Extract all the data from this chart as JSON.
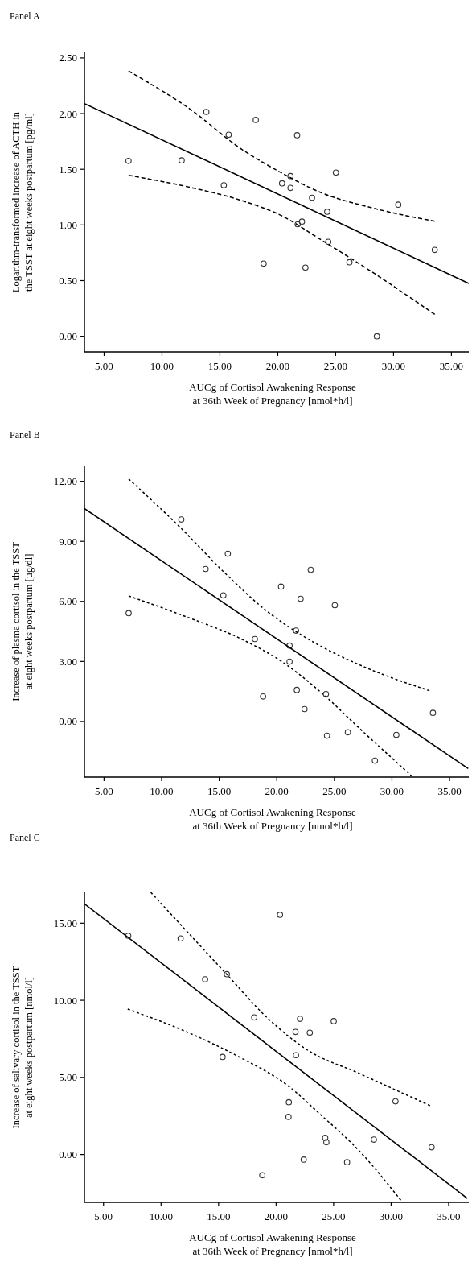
{
  "chart_data": [
    {
      "type": "scatter",
      "title": "Panel A",
      "xlabel": "AUCg of Cortisol Awakening Response\nat 36th Week of Pregnancy [nmol*h/l]",
      "ylabel": "Logarithm-transformed increase of ACTH in\nthe TSST at eight weeks postpartum [pg/ml]",
      "grid": false,
      "xlim": [
        3.3,
        36.5
      ],
      "xticks": [
        {
          "value": 5,
          "label": "5.00"
        },
        {
          "value": 10,
          "label": "10.00"
        },
        {
          "value": 15,
          "label": "15.00"
        },
        {
          "value": 20,
          "label": "20.00"
        },
        {
          "value": 25,
          "label": "25.00"
        },
        {
          "value": 30,
          "label": "30.00"
        },
        {
          "value": 35,
          "label": "35.00"
        }
      ],
      "ylim": [
        -0.14,
        2.55
      ],
      "yticks": [
        {
          "value": 0,
          "label": "0.00"
        },
        {
          "value": 0.5,
          "label": "0.50"
        },
        {
          "value": 1,
          "label": "1.00"
        },
        {
          "value": 1.5,
          "label": "1.50"
        },
        {
          "value": 2,
          "label": "2.00"
        },
        {
          "value": 2.5,
          "label": "2.50"
        }
      ],
      "series": [
        {
          "type": "scatter",
          "marker": "circle",
          "color": "#333333",
          "x": [
            7.11,
            11.7,
            13.83,
            15.34,
            15.76,
            18.1,
            18.78,
            20.37,
            21.1,
            21.1,
            21.67,
            21.72,
            22.09,
            22.39,
            22.96,
            24.27,
            24.36,
            25.02,
            26.19,
            28.56,
            30.41,
            33.56
          ],
          "values": [
            1.575,
            1.58,
            2.015,
            1.357,
            1.81,
            1.943,
            0.653,
            1.374,
            1.439,
            1.333,
            1.806,
            1.006,
            1.03,
            0.617,
            1.244,
            1.119,
            0.848,
            1.47,
            0.665,
            0.0,
            1.182,
            0.776
          ]
        },
        {
          "type": "line",
          "color": "#000000",
          "line_style": "solid",
          "x": [
            3.3,
            36.5
          ],
          "values": [
            2.09,
            0.475
          ]
        },
        {
          "type": "line",
          "color": "#000000",
          "line_style": "dashed",
          "x": [
            7.11,
            12.57,
            16.7,
            20.37,
            23.58,
            28.17,
            33.56
          ],
          "values": [
            2.382,
            2.029,
            1.693,
            1.465,
            1.297,
            1.153,
            1.033
          ]
        },
        {
          "type": "line",
          "color": "#000000",
          "line_style": "dashed",
          "x": [
            7.11,
            12.11,
            16.7,
            20.37,
            23.58,
            28.17,
            33.56
          ],
          "values": [
            1.446,
            1.345,
            1.225,
            1.081,
            0.877,
            0.576,
            0.197
          ]
        }
      ]
    },
    {
      "type": "scatter",
      "title": "Panel B",
      "xlabel": "AUCg of Cortisol Awakening Response\nat 36th Week of Pregnancy [nmol*h/l]",
      "ylabel": "Increase of plasma cortisol in the TSST\nat eight weeks postpartum [µg/dl]",
      "grid": false,
      "xlim": [
        3.3,
        36.67
      ],
      "xticks": [
        {
          "value": 5,
          "label": "5.00"
        },
        {
          "value": 10,
          "label": "10.00"
        },
        {
          "value": 15,
          "label": "15.00"
        },
        {
          "value": 20,
          "label": "20.00"
        },
        {
          "value": 25,
          "label": "25.00"
        },
        {
          "value": 30,
          "label": "30.00"
        },
        {
          "value": 35,
          "label": "35.00"
        }
      ],
      "ylim": [
        -2.78,
        12.75
      ],
      "yticks": [
        {
          "value": 0,
          "label": "0.00"
        },
        {
          "value": 3,
          "label": "3.00"
        },
        {
          "value": 6,
          "label": "6.00"
        },
        {
          "value": 9,
          "label": "9.00"
        },
        {
          "value": 12,
          "label": "12.00"
        }
      ],
      "series": [
        {
          "type": "scatter",
          "marker": "circle",
          "color": "#333333",
          "x": [
            7.14,
            11.71,
            13.82,
            15.36,
            15.75,
            18.1,
            18.81,
            20.37,
            21.11,
            21.11,
            21.67,
            21.74,
            22.07,
            22.41,
            22.95,
            24.27,
            24.36,
            25.04,
            26.17,
            28.52,
            30.38,
            33.56
          ],
          "values": [
            5.41,
            10.09,
            7.62,
            6.3,
            8.38,
            4.12,
            1.25,
            6.74,
            3.79,
            2.99,
            4.54,
            1.58,
            6.13,
            0.62,
            7.58,
            1.37,
            -0.71,
            5.81,
            -0.54,
            -1.96,
            -0.67,
            0.43
          ]
        },
        {
          "type": "line",
          "color": "#000000",
          "line_style": "solid",
          "x": [
            3.3,
            36.62
          ],
          "values": [
            10.64,
            -2.35
          ]
        },
        {
          "type": "line",
          "color": "#000000",
          "line_style": "dotted",
          "x": [
            7.14,
            11.71,
            15.49,
            19.21,
            22.69,
            27.34,
            33.26
          ],
          "values": [
            12.12,
            9.64,
            7.42,
            5.48,
            4.13,
            2.79,
            1.54
          ]
        },
        {
          "type": "line",
          "color": "#000000",
          "line_style": "dotted",
          "x": [
            7.14,
            12.24,
            16.89,
            20.6,
            23.85,
            27.34,
            31.75
          ],
          "values": [
            6.27,
            5.21,
            4.13,
            2.93,
            1.45,
            -0.43,
            -2.74
          ]
        }
      ]
    },
    {
      "type": "scatter",
      "title": "Panel C",
      "xlabel": "AUCg of Cortisol Awakening Response\nat 36th Week of Pregnancy [nmol*h/l]",
      "ylabel": "Increase of salivary cortisol in the TSST\nat eight weeks postpartum [nmol/l]",
      "grid": false,
      "xlim": [
        3.34,
        36.75
      ],
      "xticks": [
        {
          "value": 5,
          "label": "5.00"
        },
        {
          "value": 10,
          "label": "10.00"
        },
        {
          "value": 15,
          "label": "15.00"
        },
        {
          "value": 20,
          "label": "20.00"
        },
        {
          "value": 25,
          "label": "25.00"
        },
        {
          "value": 30,
          "label": "30.00"
        },
        {
          "value": 35,
          "label": "35.00"
        }
      ],
      "ylim": [
        -3.1,
        17.0
      ],
      "yticks": [
        {
          "value": 0,
          "label": "0.00"
        },
        {
          "value": 5,
          "label": "5.00"
        },
        {
          "value": 10,
          "label": "10.00"
        },
        {
          "value": 15,
          "label": "15.00"
        }
      ],
      "series": [
        {
          "type": "scatter",
          "marker": "circle",
          "color": "#333333",
          "x": [
            7.15,
            11.7,
            13.83,
            15.35,
            15.72,
            18.1,
            18.8,
            20.34,
            21.11,
            21.08,
            21.69,
            21.73,
            22.08,
            22.4,
            22.93,
            24.27,
            24.37,
            25.01,
            26.17,
            28.5,
            30.38,
            33.52
          ],
          "values": [
            14.18,
            14.01,
            11.36,
            6.33,
            11.69,
            8.89,
            -1.34,
            15.54,
            3.39,
            2.44,
            7.95,
            6.44,
            8.8,
            -0.33,
            7.9,
            1.08,
            0.8,
            8.65,
            -0.5,
            0.97,
            3.45,
            0.47
          ]
        },
        {
          "type": "line",
          "color": "#000000",
          "line_style": "solid",
          "x": [
            3.34,
            36.62
          ],
          "values": [
            16.25,
            -2.84
          ]
        },
        {
          "type": "line",
          "color": "#000000",
          "line_style": "dotted",
          "x": [
            9.11,
            12.23,
            15.7,
            19.17,
            22.63,
            27.26,
            33.38
          ],
          "values": [
            17.0,
            14.48,
            11.69,
            8.91,
            6.82,
            5.25,
            3.17
          ]
        },
        {
          "type": "line",
          "color": "#000000",
          "line_style": "dotted",
          "x": [
            7.1,
            12.23,
            16.86,
            21.02,
            23.79,
            27.26,
            30.84
          ],
          "values": [
            9.43,
            7.95,
            6.3,
            4.47,
            2.64,
            0.21,
            -2.96
          ]
        }
      ]
    }
  ]
}
